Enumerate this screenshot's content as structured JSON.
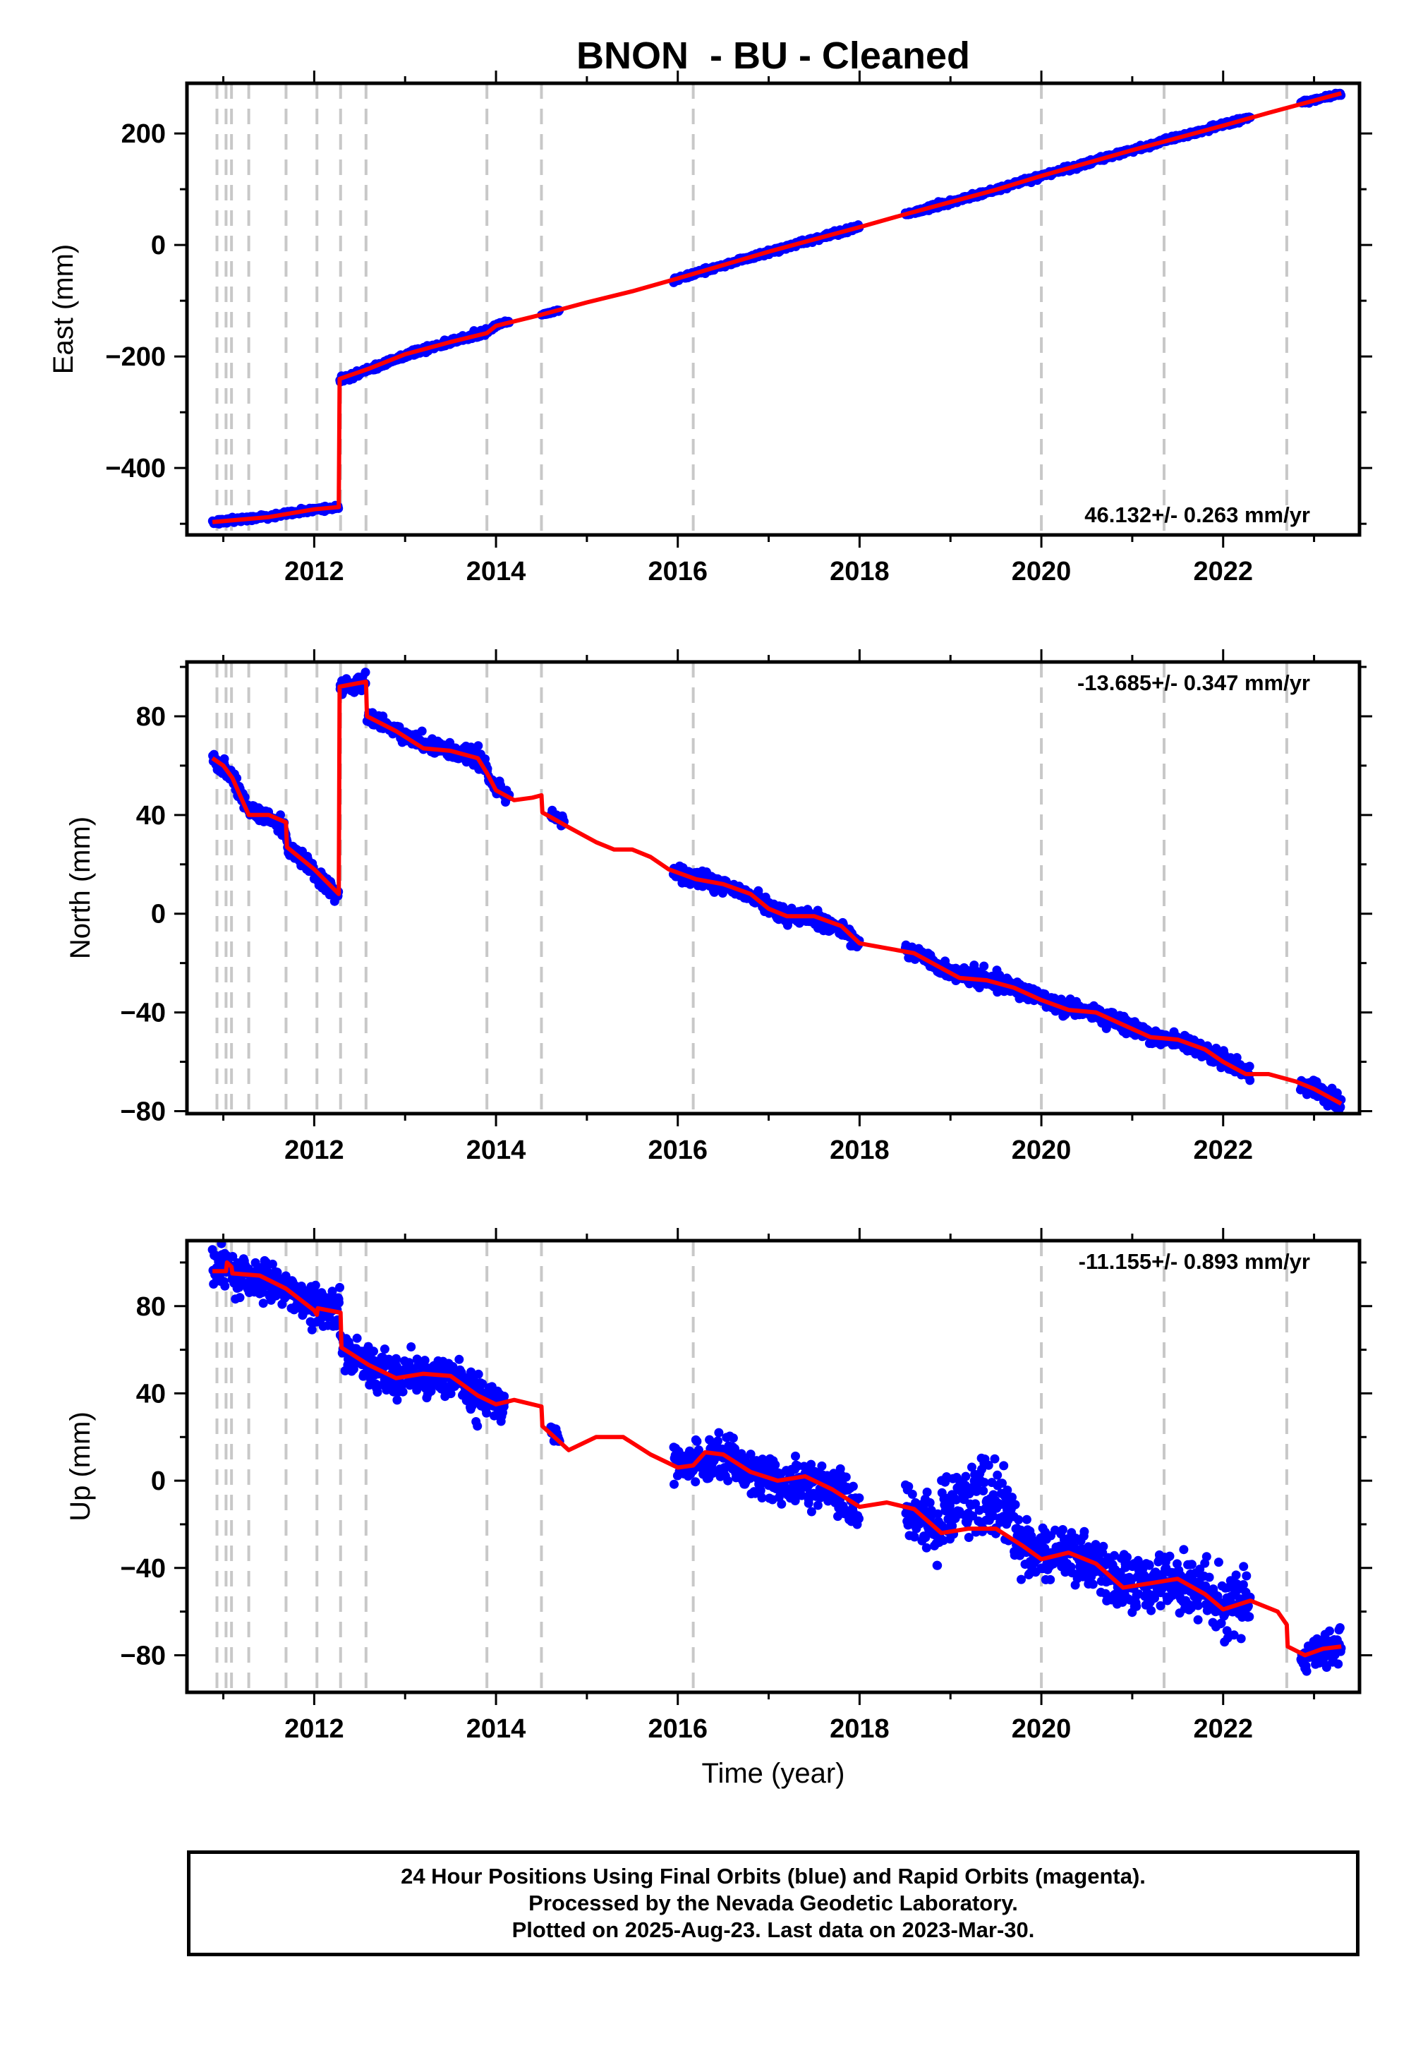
{
  "title": "BNON  - BU - Cleaned",
  "colors": {
    "data": "#0000ff",
    "model": "#ff0000",
    "breaks": "#c8c8c8",
    "frame": "#000000"
  },
  "chart_data": [
    {
      "type": "scatter",
      "name": "east",
      "ylabel": "East (mm)",
      "xlabel": "",
      "xlim": [
        2010.6,
        2023.5
      ],
      "ylim": [
        -520,
        290
      ],
      "xticks": [
        2012,
        2014,
        2016,
        2018,
        2020,
        2022
      ],
      "yticks": [
        -400,
        -200,
        0,
        200
      ],
      "ytick_labels": [
        "−400",
        "−200",
        "0",
        "200"
      ],
      "rate_label": "46.132+/- 0.263 mm/yr",
      "rate_position": "bottom-right",
      "breaks": [
        2010.93,
        2011.03,
        2011.09,
        2011.28,
        2011.69,
        2012.03,
        2012.29,
        2012.57,
        2013.9,
        2014.5,
        2016.17,
        2020.0,
        2021.35,
        2022.7
      ],
      "model": [
        [
          2010.88,
          -497
        ],
        [
          2011.5,
          -488
        ],
        [
          2012.0,
          -474
        ],
        [
          2012.27,
          -470
        ],
        [
          2012.28,
          -240
        ],
        [
          2012.6,
          -222
        ],
        [
          2013.0,
          -196
        ],
        [
          2013.5,
          -174
        ],
        [
          2013.9,
          -158
        ],
        [
          2014.0,
          -145
        ],
        [
          2014.5,
          -125
        ],
        [
          2015.0,
          -103
        ],
        [
          2015.5,
          -83
        ],
        [
          2016.0,
          -60
        ],
        [
          2016.5,
          -36
        ],
        [
          2017.0,
          -12
        ],
        [
          2017.5,
          10
        ],
        [
          2018.0,
          32
        ],
        [
          2018.5,
          55
        ],
        [
          2019.0,
          77
        ],
        [
          2019.5,
          99
        ],
        [
          2020.0,
          124
        ],
        [
          2020.5,
          147
        ],
        [
          2021.0,
          170
        ],
        [
          2021.5,
          192
        ],
        [
          2022.0,
          214
        ],
        [
          2022.5,
          237
        ],
        [
          2023.0,
          259
        ],
        [
          2023.3,
          272
        ]
      ],
      "obs_segments": [
        [
          2010.88,
          2012.27,
          4,
          -497,
          -470
        ],
        [
          2012.28,
          2013.9,
          5,
          -245,
          -148
        ],
        [
          2013.9,
          2014.15,
          3,
          -150,
          -132
        ],
        [
          2014.5,
          2014.7,
          2,
          -126,
          -118
        ],
        [
          2015.95,
          2018.0,
          4,
          -65,
          34
        ],
        [
          2018.5,
          2022.3,
          4,
          53,
          232
        ],
        [
          2022.85,
          2023.3,
          3,
          258,
          272
        ]
      ]
    },
    {
      "type": "scatter",
      "name": "north",
      "ylabel": "North (mm)",
      "xlabel": "",
      "xlim": [
        2010.6,
        2023.5
      ],
      "ylim": [
        -81,
        102
      ],
      "xticks": [
        2012,
        2014,
        2016,
        2018,
        2020,
        2022
      ],
      "yticks": [
        -80,
        -40,
        0,
        40,
        80
      ],
      "ytick_labels": [
        "−80",
        "−40",
        "0",
        "40",
        "80"
      ],
      "rate_label": "-13.685+/- 0.347 mm/yr",
      "rate_position": "top-right",
      "breaks": [
        2010.93,
        2011.03,
        2011.09,
        2011.28,
        2011.69,
        2012.03,
        2012.29,
        2012.57,
        2013.9,
        2014.5,
        2016.17,
        2020.0,
        2021.35,
        2022.7
      ],
      "model": [
        [
          2010.88,
          63
        ],
        [
          2011.0,
          60
        ],
        [
          2011.1,
          55
        ],
        [
          2011.28,
          40
        ],
        [
          2011.5,
          40
        ],
        [
          2011.69,
          37
        ],
        [
          2011.7,
          27
        ],
        [
          2012.0,
          18
        ],
        [
          2012.27,
          8
        ],
        [
          2012.28,
          92
        ],
        [
          2012.57,
          94
        ],
        [
          2012.58,
          80
        ],
        [
          2012.9,
          74
        ],
        [
          2013.2,
          67
        ],
        [
          2013.5,
          66
        ],
        [
          2013.8,
          63
        ],
        [
          2013.9,
          57
        ],
        [
          2014.0,
          50
        ],
        [
          2014.2,
          46
        ],
        [
          2014.4,
          47
        ],
        [
          2014.5,
          48
        ],
        [
          2014.51,
          41
        ],
        [
          2014.8,
          35
        ],
        [
          2015.1,
          29
        ],
        [
          2015.3,
          26
        ],
        [
          2015.5,
          26
        ],
        [
          2015.7,
          23
        ],
        [
          2015.9,
          18
        ],
        [
          2016.2,
          14
        ],
        [
          2016.5,
          12
        ],
        [
          2016.8,
          8
        ],
        [
          2017.0,
          2
        ],
        [
          2017.2,
          -1
        ],
        [
          2017.5,
          -1
        ],
        [
          2017.8,
          -5
        ],
        [
          2018.0,
          -12
        ],
        [
          2018.3,
          -14
        ],
        [
          2018.6,
          -16
        ],
        [
          2018.9,
          -22
        ],
        [
          2019.1,
          -26
        ],
        [
          2019.4,
          -27
        ],
        [
          2019.7,
          -30
        ],
        [
          2020.0,
          -35
        ],
        [
          2020.3,
          -39
        ],
        [
          2020.6,
          -40
        ],
        [
          2020.9,
          -45
        ],
        [
          2021.2,
          -50
        ],
        [
          2021.5,
          -51
        ],
        [
          2021.8,
          -55
        ],
        [
          2022.0,
          -60
        ],
        [
          2022.25,
          -65
        ],
        [
          2022.5,
          -65
        ],
        [
          2022.8,
          -68
        ],
        [
          2023.0,
          -71
        ],
        [
          2023.3,
          -77
        ]
      ],
      "obs_segments": [
        [
          2010.88,
          2012.27,
          3,
          63,
          5
        ],
        [
          2012.28,
          2012.57,
          3,
          91,
          94
        ],
        [
          2012.58,
          2013.9,
          3,
          80,
          62
        ],
        [
          2013.9,
          2014.15,
          3,
          55,
          48
        ],
        [
          2014.6,
          2014.75,
          2,
          42,
          40
        ],
        [
          2015.95,
          2018.0,
          3,
          18,
          -12
        ],
        [
          2018.5,
          2022.3,
          3,
          -14,
          -62
        ],
        [
          2022.85,
          2023.3,
          3,
          -70,
          -77
        ]
      ]
    },
    {
      "type": "scatter",
      "name": "up",
      "ylabel": "Up (mm)",
      "xlabel": "Time (year)",
      "xlim": [
        2010.6,
        2023.5
      ],
      "ylim": [
        -97,
        110
      ],
      "xticks": [
        2012,
        2014,
        2016,
        2018,
        2020,
        2022
      ],
      "yticks": [
        -80,
        -40,
        0,
        40,
        80
      ],
      "ytick_labels": [
        "−80",
        "−40",
        "0",
        "40",
        "80"
      ],
      "rate_label": "-11.155+/- 0.893 mm/yr",
      "rate_position": "top-right",
      "breaks": [
        2010.93,
        2011.03,
        2011.09,
        2011.28,
        2011.69,
        2012.03,
        2012.29,
        2012.57,
        2013.9,
        2014.5,
        2016.17,
        2020.0,
        2021.35,
        2022.7
      ],
      "model": [
        [
          2010.88,
          96
        ],
        [
          2011.03,
          96
        ],
        [
          2011.04,
          100
        ],
        [
          2011.09,
          98
        ],
        [
          2011.1,
          95
        ],
        [
          2011.4,
          94
        ],
        [
          2011.69,
          88
        ],
        [
          2012.0,
          78
        ],
        [
          2012.03,
          76
        ],
        [
          2012.04,
          79
        ],
        [
          2012.29,
          77
        ],
        [
          2012.3,
          61
        ],
        [
          2012.6,
          53
        ],
        [
          2012.9,
          47
        ],
        [
          2013.2,
          49
        ],
        [
          2013.5,
          48
        ],
        [
          2013.8,
          39
        ],
        [
          2014.0,
          35
        ],
        [
          2014.2,
          37
        ],
        [
          2014.5,
          34
        ],
        [
          2014.51,
          25
        ],
        [
          2014.8,
          14
        ],
        [
          2015.1,
          20
        ],
        [
          2015.4,
          20
        ],
        [
          2015.7,
          12
        ],
        [
          2016.0,
          6
        ],
        [
          2016.17,
          7
        ],
        [
          2016.3,
          13
        ],
        [
          2016.5,
          12
        ],
        [
          2016.8,
          4
        ],
        [
          2017.1,
          0
        ],
        [
          2017.4,
          2
        ],
        [
          2017.7,
          -4
        ],
        [
          2018.0,
          -12
        ],
        [
          2018.3,
          -10
        ],
        [
          2018.6,
          -13
        ],
        [
          2018.9,
          -24
        ],
        [
          2019.2,
          -22
        ],
        [
          2019.5,
          -22
        ],
        [
          2019.8,
          -30
        ],
        [
          2020.0,
          -36
        ],
        [
          2020.3,
          -33
        ],
        [
          2020.6,
          -38
        ],
        [
          2020.9,
          -49
        ],
        [
          2021.2,
          -47
        ],
        [
          2021.5,
          -45
        ],
        [
          2021.8,
          -52
        ],
        [
          2022.0,
          -59
        ],
        [
          2022.3,
          -55
        ],
        [
          2022.6,
          -60
        ],
        [
          2022.7,
          -66
        ],
        [
          2022.71,
          -76
        ],
        [
          2022.9,
          -80
        ],
        [
          2023.1,
          -77
        ],
        [
          2023.3,
          -76
        ]
      ],
      "obs_segments": [
        [
          2010.88,
          2012.29,
          8,
          97,
          78
        ],
        [
          2012.3,
          2013.9,
          9,
          58,
          38
        ],
        [
          2013.9,
          2014.1,
          7,
          36,
          33
        ],
        [
          2014.6,
          2014.7,
          3,
          25,
          22
        ],
        [
          2015.95,
          2018.0,
          9,
          12,
          -12
        ],
        [
          2018.5,
          2022.3,
          12,
          -14,
          -57
        ],
        [
          2022.85,
          2023.3,
          7,
          -80,
          -76
        ]
      ]
    }
  ],
  "footer": {
    "line1": "24 Hour Positions Using Final Orbits (blue) and Rapid Orbits (magenta).",
    "line2": "Processed by the Nevada Geodetic Laboratory.",
    "line3": "Plotted on 2025-Aug-23. Last data on 2023-Mar-30."
  }
}
